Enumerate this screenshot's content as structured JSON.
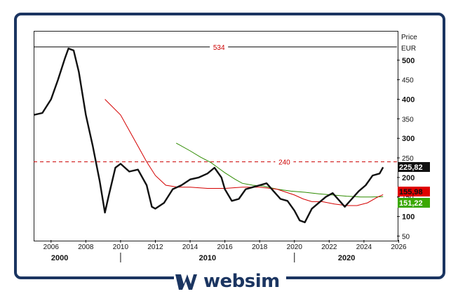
{
  "chart_data": {
    "type": "candlestick-line",
    "ylabel": "Price",
    "yunit": "EUR",
    "yticks": [
      50,
      100,
      150,
      200,
      250,
      300,
      350,
      400,
      450,
      500
    ],
    "ylim": [
      40,
      575
    ],
    "xlim": [
      2005.0,
      2025.9
    ],
    "xticks": [
      "2006",
      "2008",
      "2010",
      "2012",
      "2014",
      "2016",
      "2018",
      "2020",
      "2022",
      "2024",
      "2026"
    ],
    "decades": [
      "2000",
      "2010",
      "2020"
    ],
    "price_series": {
      "x": [
        2005.0,
        2005.5,
        2006.0,
        2006.4,
        2006.8,
        2007.0,
        2007.3,
        2007.6,
        2008.0,
        2008.4,
        2008.8,
        2009.1,
        2009.3,
        2009.7,
        2010.0,
        2010.5,
        2011.0,
        2011.5,
        2011.8,
        2012.0,
        2012.5,
        2013.0,
        2013.5,
        2014.0,
        2014.5,
        2015.0,
        2015.4,
        2015.8,
        2016.0,
        2016.4,
        2016.8,
        2017.2,
        2017.6,
        2018.0,
        2018.4,
        2018.8,
        2019.2,
        2019.6,
        2020.0,
        2020.3,
        2020.6,
        2021.0,
        2021.4,
        2021.8,
        2022.2,
        2022.6,
        2022.9,
        2023.3,
        2023.7,
        2024.1,
        2024.5,
        2024.9,
        2025.1
      ],
      "y": [
        360,
        365,
        400,
        450,
        505,
        530,
        525,
        470,
        360,
        280,
        190,
        110,
        150,
        225,
        235,
        215,
        220,
        180,
        125,
        120,
        135,
        170,
        180,
        195,
        200,
        210,
        225,
        200,
        170,
        140,
        145,
        170,
        175,
        180,
        185,
        165,
        145,
        140,
        115,
        90,
        85,
        120,
        135,
        150,
        160,
        140,
        125,
        145,
        165,
        180,
        205,
        210,
        226
      ]
    },
    "ma_red": {
      "x": [
        2009.1,
        2010.0,
        2010.5,
        2011.0,
        2011.5,
        2012.0,
        2012.6,
        2013.3,
        2014.0,
        2015.0,
        2016.0,
        2017.0,
        2018.0,
        2019.0,
        2020.0,
        2020.5,
        2021.0,
        2021.6,
        2022.3,
        2023.0,
        2023.6,
        2024.2,
        2024.8,
        2025.1
      ],
      "y": [
        400,
        360,
        320,
        280,
        240,
        205,
        180,
        175,
        175,
        172,
        172,
        175,
        175,
        170,
        155,
        145,
        138,
        138,
        132,
        128,
        128,
        135,
        150,
        156
      ]
    },
    "ma_green": {
      "x": [
        2013.2,
        2014.0,
        2014.6,
        2015.2,
        2015.6,
        2016.0,
        2016.6,
        2017.0,
        2017.6,
        2018.2,
        2019.0,
        2019.8,
        2020.6,
        2021.4,
        2022.2,
        2023.0,
        2023.8,
        2024.4,
        2025.1
      ],
      "y": [
        288,
        268,
        252,
        238,
        225,
        212,
        195,
        185,
        180,
        178,
        170,
        165,
        162,
        158,
        155,
        152,
        150,
        150,
        151
      ]
    },
    "hlines": [
      {
        "value": 534,
        "label": "534",
        "style": "solid",
        "color": "#000000"
      },
      {
        "value": 240,
        "label": "240",
        "style": "dashed",
        "color": "#cc0000"
      }
    ],
    "price_tags": [
      {
        "value": 225.82,
        "label": "225,82",
        "bg": "#111111",
        "fg": "#ffffff"
      },
      {
        "value": 155.98,
        "label": "155,98",
        "bg": "#e00000",
        "fg": "#111111"
      },
      {
        "value": 151.22,
        "label": "151,22",
        "bg": "#3aa800",
        "fg": "#ffffff"
      }
    ],
    "grid": false
  },
  "branding": {
    "logo_text": "websim",
    "logo_icon": "websim-logo-icon",
    "brand_color": "#1b3561"
  }
}
